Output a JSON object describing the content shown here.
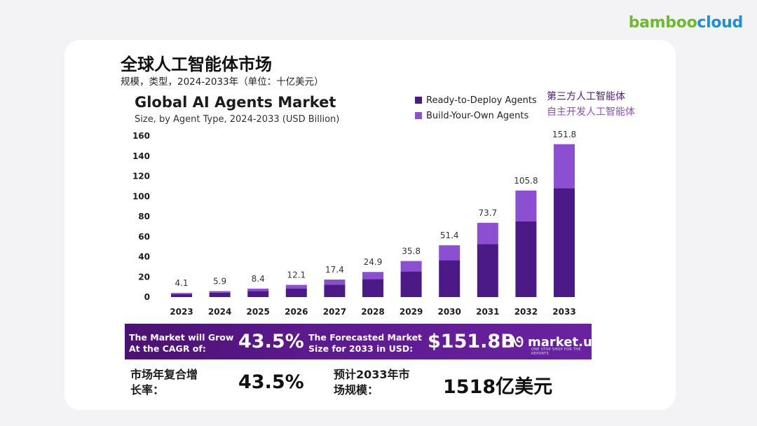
{
  "brand": {
    "part1": "bamboo",
    "part2": "cloud"
  },
  "slide": {
    "title": "全球人工智能体市场",
    "subtitle": "规模，类型，2024-2033年（单位：十亿美元）"
  },
  "chart_data": {
    "type": "bar",
    "stacked": true,
    "title": "Global AI Agents Market",
    "subtitle": "Size, by Agent Type, 2024-2033 (USD Billion)",
    "categories": [
      "2023",
      "2024",
      "2025",
      "2026",
      "2027",
      "2028",
      "2029",
      "2030",
      "2031",
      "2032",
      "2033"
    ],
    "totals": [
      4.1,
      5.9,
      8.4,
      12.1,
      17.4,
      24.9,
      35.8,
      51.4,
      73.7,
      105.8,
      151.8
    ],
    "series": [
      {
        "name": "Ready-to-Deploy Agents",
        "cn_name": "第三方人工智能体",
        "color": "#4b1a86",
        "values": [
          2.9,
          4.2,
          6.0,
          8.6,
          12.4,
          17.8,
          25.5,
          36.6,
          52.5,
          75.3,
          108.1
        ]
      },
      {
        "name": "Build-Your-Own Agents",
        "cn_name": "自主开发人工智能体",
        "color": "#8c4fd2",
        "values": [
          1.2,
          1.7,
          2.4,
          3.5,
          5.0,
          7.1,
          10.3,
          14.8,
          21.2,
          30.5,
          43.7
        ]
      }
    ],
    "yticks": [
      0,
      20,
      40,
      60,
      80,
      100,
      120,
      140,
      160
    ],
    "ylim": [
      0,
      160
    ],
    "xlabel": "",
    "ylabel": "",
    "grid": false,
    "legend": "top-right"
  },
  "banner": {
    "cagr_label": "The Market will Grow At the CAGR of:",
    "cagr_value": "43.5%",
    "forecast_label": "The Forecasted Market Size for 2033 in USD:",
    "forecast_value": "$151.8B",
    "logo_text": "market.us",
    "logo_tagline": "ONE STOP SHOP FOR THE REPORTS"
  },
  "metrics": {
    "cagr_label_cn": "市场年复合增长率：",
    "cagr_value": "43.5%",
    "size_label_cn": "预计2033年市场规模：",
    "size_value": "1518亿美元"
  }
}
